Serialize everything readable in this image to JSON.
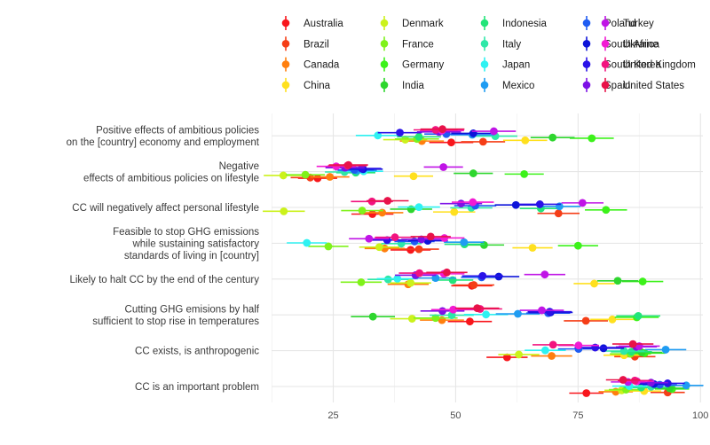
{
  "chart_data": {
    "type": "scatter",
    "title": "",
    "xlabel": "",
    "ylabel": "",
    "xlim": [
      12.4,
      100.5
    ],
    "x_ticks": [
      25,
      50,
      75,
      100
    ],
    "grid": true,
    "legend_position": "top",
    "categories": [
      "CC is an important problem",
      "CC exists, is anthropogenic",
      "Cutting GHG emisions by half\nsufficient to stop rise in temperatures",
      "Likely to halt CC by the end of the century",
      "Feasible to stop GHG emissions\nwhile sustaining satisfactory\nstandards of living in [country]",
      "CC will negatively affect personal lifestyle",
      "Negative\neffects of ambitious policies on lifestyle",
      "Positive effects of ambitious policies\non the [country] economy and employment"
    ],
    "series": [
      {
        "name": "Australia",
        "color": "#F8161C",
        "values": [
          76.7,
          60.5,
          52.9,
          53.3,
          40.8,
          33.0,
          21.8,
          49.1
        ]
      },
      {
        "name": "Brazil",
        "color": "#F53E17",
        "values": [
          93.3,
          86.6,
          76.6,
          53.7,
          42.5,
          71.0,
          20.3,
          55.6
        ]
      },
      {
        "name": "Canada",
        "color": "#FF7F0E",
        "values": [
          82.7,
          69.6,
          47.2,
          40.3,
          35.5,
          35.0,
          24.3,
          43.1
        ]
      },
      {
        "name": "China",
        "color": "#FFE01E",
        "values": [
          88.5,
          84.4,
          82.0,
          78.3,
          65.7,
          49.7,
          41.4,
          64.2
        ]
      },
      {
        "name": "Denmark",
        "color": "#CBF21B",
        "values": [
          83.9,
          62.9,
          41.1,
          40.8,
          34.4,
          14.9,
          14.8,
          39.7
        ]
      },
      {
        "name": "France",
        "color": "#7FF21A",
        "values": [
          84.8,
          85.7,
          45.9,
          30.7,
          24.0,
          30.9,
          19.3,
          42.1
        ]
      },
      {
        "name": "Germany",
        "color": "#3CF21A",
        "values": [
          94.2,
          88.6,
          87.0,
          88.2,
          75.0,
          80.7,
          64.0,
          77.8
        ]
      },
      {
        "name": "India",
        "color": "#2ED62E",
        "values": [
          93.7,
          88.0,
          33.1,
          83.1,
          55.8,
          40.9,
          53.6,
          69.8
        ]
      },
      {
        "name": "Indonesia",
        "color": "#22E57A",
        "values": [
          87.9,
          85.9,
          87.3,
          49.4,
          51.8,
          67.4,
          29.6,
          42.5
        ]
      },
      {
        "name": "Italy",
        "color": "#2EE8A8",
        "values": [
          89.9,
          84.4,
          49.2,
          36.2,
          38.9,
          53.2,
          27.3,
          58.1
        ]
      },
      {
        "name": "Japan",
        "color": "#2EF2F2",
        "values": [
          85.5,
          68.3,
          56.2,
          38.1,
          19.6,
          42.5,
          31.2,
          34.1
        ]
      },
      {
        "name": "Mexico",
        "color": "#1F9CF2",
        "values": [
          97.1,
          92.9,
          62.7,
          45.9,
          51.7,
          71.2,
          29.9,
          53.4
        ]
      },
      {
        "name": "Poland",
        "color": "#1F5CF2",
        "values": [
          91.7,
          75.1,
          68.9,
          55.3,
          41.6,
          54.0,
          29.3,
          48.1
        ]
      },
      {
        "name": "South Africa",
        "color": "#0D14D9",
        "values": [
          90.5,
          80.2,
          69.4,
          58.8,
          44.3,
          62.3,
          31.1,
          53.6
        ]
      },
      {
        "name": "South Korea",
        "color": "#2A12E8",
        "values": [
          93.3,
          78.5,
          69.2,
          55.5,
          36.0,
          67.2,
          30.8,
          38.6
        ]
      },
      {
        "name": "Spain",
        "color": "#7D11E6",
        "values": [
          89.9,
          86.9,
          47.3,
          41.8,
          43.0,
          51.1,
          27.4,
          46.6
        ]
      },
      {
        "name": "Turkey",
        "color": "#C014E6",
        "values": [
          85.2,
          87.5,
          67.6,
          68.2,
          32.3,
          75.9,
          47.5,
          57.8
        ]
      },
      {
        "name": "Ukraine",
        "color": "#F21AD3",
        "values": [
          87.0,
          75.1,
          49.5,
          47.6,
          47.7,
          53.5,
          25.6,
          47.2
        ]
      },
      {
        "name": "United Kingdom",
        "color": "#F2147F",
        "values": [
          86.6,
          69.9,
          55.0,
          42.6,
          37.6,
          32.9,
          27.9,
          45.9
        ]
      },
      {
        "name": "United States",
        "color": "#E81249",
        "values": [
          84.2,
          86.2,
          54.4,
          48.2,
          44.9,
          36.1,
          28.1,
          47.3
        ]
      }
    ]
  },
  "legend": {
    "columns": [
      [
        "Australia",
        "Brazil",
        "Canada",
        "China"
      ],
      [
        "Denmark",
        "France",
        "Germany",
        "India"
      ],
      [
        "Indonesia",
        "Italy",
        "Japan",
        "Mexico"
      ],
      [
        "Poland",
        "South Africa",
        "South Korea",
        "Spain"
      ],
      [
        "Turkey",
        "Ukraine",
        "United Kingdom",
        "United States"
      ]
    ]
  }
}
